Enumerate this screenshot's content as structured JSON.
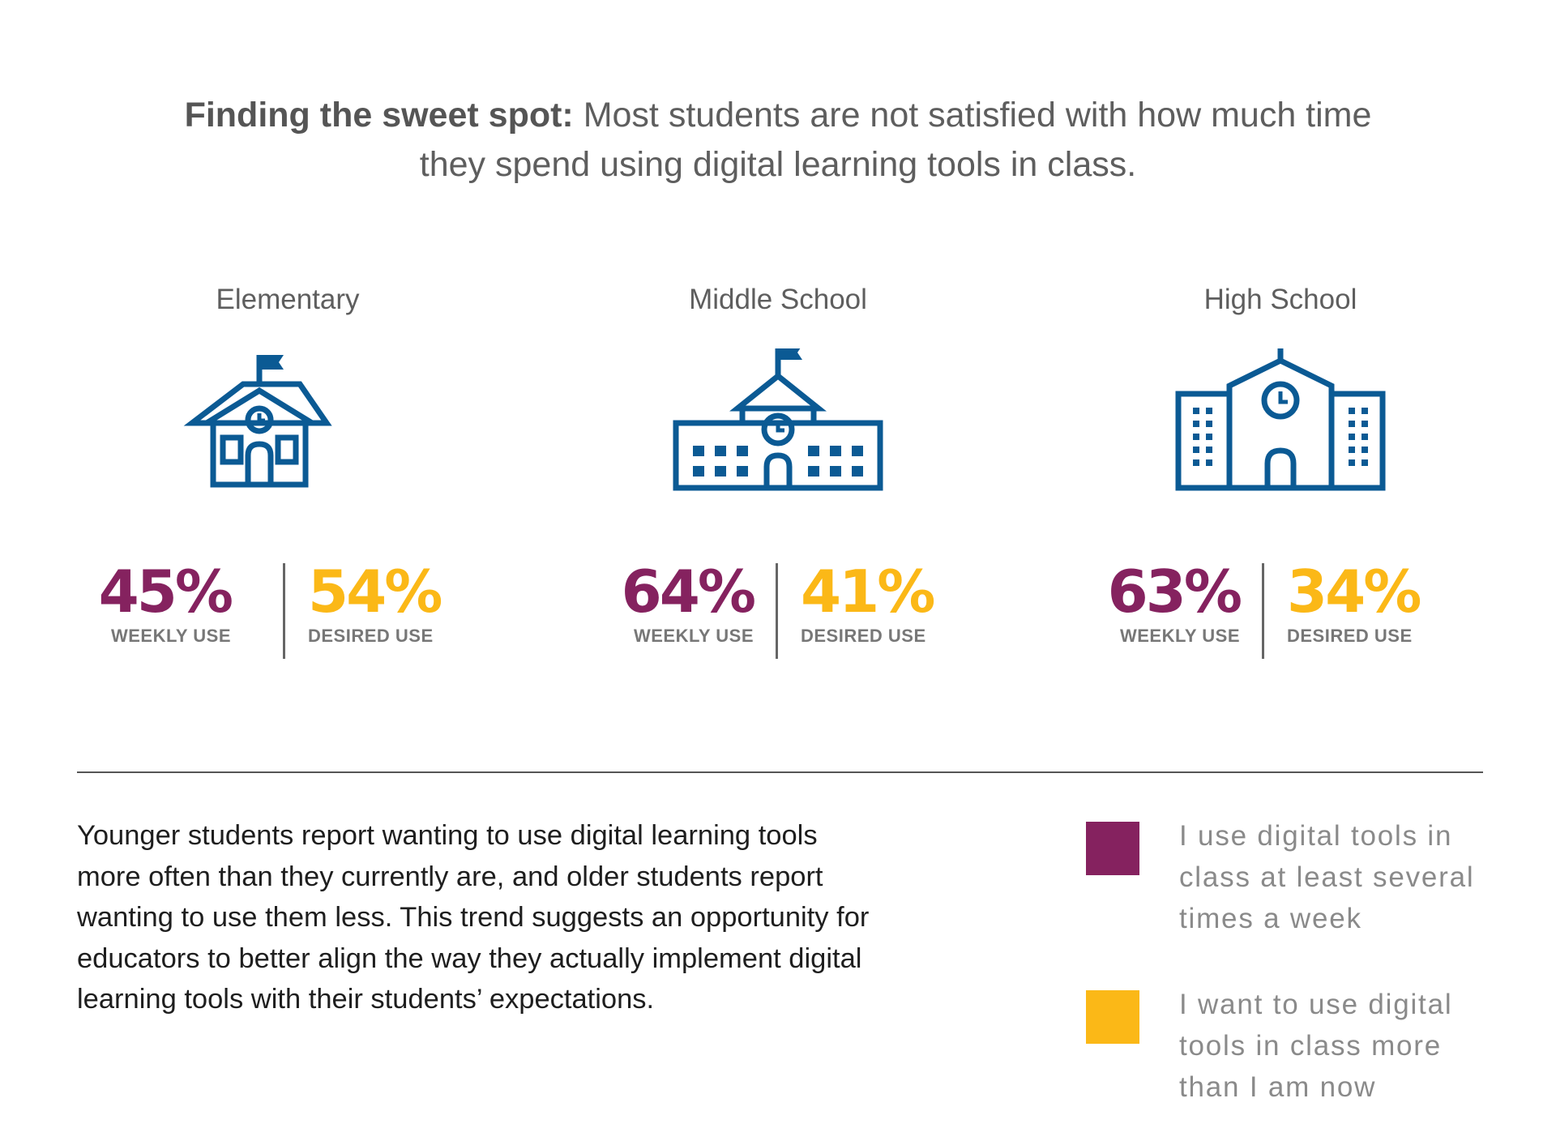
{
  "headline": {
    "lead": "Finding the sweet spot:",
    "text": "Most students are not satisfied with how much time they spend using digital learning tools in class."
  },
  "colors": {
    "weekly": "#85225f",
    "desired": "#fbb817",
    "icon": "#0b5a94"
  },
  "schools": [
    {
      "name": "Elementary",
      "icon": "elementary-school-icon",
      "weekly_value": "45%",
      "weekly_label": "WEEKLY USE",
      "desired_value": "54%",
      "desired_label": "DESIRED USE"
    },
    {
      "name": "Middle School",
      "icon": "middle-school-icon",
      "weekly_value": "64%",
      "weekly_label": "WEEKLY USE",
      "desired_value": "41%",
      "desired_label": "DESIRED USE"
    },
    {
      "name": "High School",
      "icon": "high-school-icon",
      "weekly_value": "63%",
      "weekly_label": "WEEKLY USE",
      "desired_value": "34%",
      "desired_label": "DESIRED USE"
    }
  ],
  "body_text": "Younger students report wanting to use digital learning tools more often than they currently are, and older students report wanting to use them less. This trend suggests an opportunity for educators to better align the way they actually implement digital learning tools with their students’ expectations.",
  "legend": [
    {
      "label": "I use digital tools in class at least several times a week",
      "color": "#85225f"
    },
    {
      "label": "I want to use digital tools in class more than I am now",
      "color": "#fbb817"
    }
  ]
}
